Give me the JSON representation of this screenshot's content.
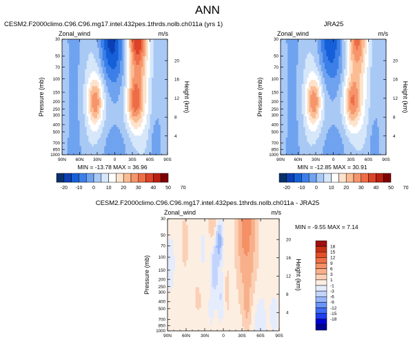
{
  "figure_title": "ANN",
  "colors": {
    "model_scale": [
      "#08306b",
      "#0c3fb4",
      "#1560d8",
      "#3d7fe8",
      "#6fa3f0",
      "#a9c9f5",
      "#d6e7fa",
      "#ffffff",
      "#fde3cc",
      "#fbbc94",
      "#f6946a",
      "#ee6d46",
      "#dc4328",
      "#b82012",
      "#7f0000"
    ],
    "diff_scale": [
      "#000093",
      "#0000d0",
      "#1d3ff0",
      "#3e6cf5",
      "#6a94f7",
      "#98b6fa",
      "#c3d4fc",
      "#e4ecfd",
      "#fdeee2",
      "#fbd0b5",
      "#f8b08b",
      "#f49065",
      "#ef7044",
      "#e34f28",
      "#c63015",
      "#a10e0e"
    ]
  },
  "chart_data": [
    {
      "type": "heatmap",
      "title": "CESM2.F2000climo.C96.C96.mg17.intel.432pes.1thrds.nolb.ch011a (yrs 1)",
      "variable": "Zonal_wind",
      "units": "m/s",
      "ylabel": "Pressure (mb)",
      "ylabel_right": "Height (km)",
      "x_ticks": [
        "90N",
        "60N",
        "30N",
        "0",
        "30S",
        "60S",
        "90S"
      ],
      "y_ticks": [
        "30",
        "50",
        "70",
        "100",
        "150",
        "200",
        "250",
        "300",
        "400",
        "500",
        "700",
        "850",
        "1000"
      ],
      "y2_ticks": [
        "20",
        "16",
        "12",
        "8",
        "4"
      ],
      "y_scale": "log",
      "y_range": [
        1000,
        30
      ],
      "stats": "MIN = -13.78   MAX =  36.96",
      "min": -13.78,
      "max": 36.96,
      "colorbar_labels": [
        "-20",
        "-10",
        "0",
        "10",
        "20",
        "30",
        "40",
        "50",
        "70"
      ],
      "levels": [
        -25,
        -20,
        -15,
        -10,
        -5,
        0,
        5,
        10,
        15,
        20,
        25,
        30,
        40,
        50,
        60,
        70
      ]
    },
    {
      "type": "heatmap",
      "title": "JRA25",
      "variable": "Zonal_wind",
      "units": "m/s",
      "ylabel": "Pressure (mb)",
      "ylabel_right": "Height (km)",
      "x_ticks": [
        "90N",
        "60N",
        "30N",
        "0",
        "30S",
        "60S",
        "90S"
      ],
      "y_ticks": [
        "30",
        "50",
        "70",
        "100",
        "150",
        "200",
        "250",
        "300",
        "400",
        "500",
        "700",
        "850",
        "1000"
      ],
      "y2_ticks": [
        "20",
        "16",
        "12",
        "8",
        "4"
      ],
      "y_scale": "log",
      "y_range": [
        1000,
        30
      ],
      "stats": "MIN = -12.85   MAX =  30.91",
      "min": -12.85,
      "max": 30.91,
      "colorbar_labels": [
        "-20",
        "-10",
        "0",
        "10",
        "20",
        "30",
        "40",
        "50",
        "70"
      ],
      "levels": [
        -25,
        -20,
        -15,
        -10,
        -5,
        0,
        5,
        10,
        15,
        20,
        25,
        30,
        40,
        50,
        60,
        70
      ]
    },
    {
      "type": "heatmap",
      "title": "CESM2.F2000climo.C96.C96.mg17.intel.432pes.1thrds.nolb.ch011a - JRA25",
      "variable": "Zonal_wind",
      "units": "m/s",
      "ylabel": "Pressure (mb)",
      "ylabel_right": "Height (km)",
      "x_ticks": [
        "90N",
        "60N",
        "30N",
        "0",
        "30S",
        "60S",
        "90S"
      ],
      "y_ticks": [
        "30",
        "50",
        "70",
        "100",
        "150",
        "200",
        "250",
        "300",
        "400",
        "500",
        "700",
        "850",
        "1000"
      ],
      "y2_ticks": [
        "20",
        "16",
        "12",
        "8",
        "4"
      ],
      "y_scale": "log",
      "y_range": [
        1000,
        30
      ],
      "stats": "MIN =  -9.55   MAX =   7.14",
      "min": -9.55,
      "max": 7.14,
      "colorbar_labels": [
        "18",
        "15",
        "12",
        "9",
        "6",
        "3",
        "1",
        "-1",
        "-3",
        "-6",
        "-9",
        "-12",
        "-15",
        "-18"
      ],
      "levels": [
        -21,
        -18,
        -15,
        -12,
        -9,
        -6,
        -3,
        -1,
        1,
        3,
        6,
        9,
        12,
        15,
        18,
        21
      ]
    }
  ]
}
